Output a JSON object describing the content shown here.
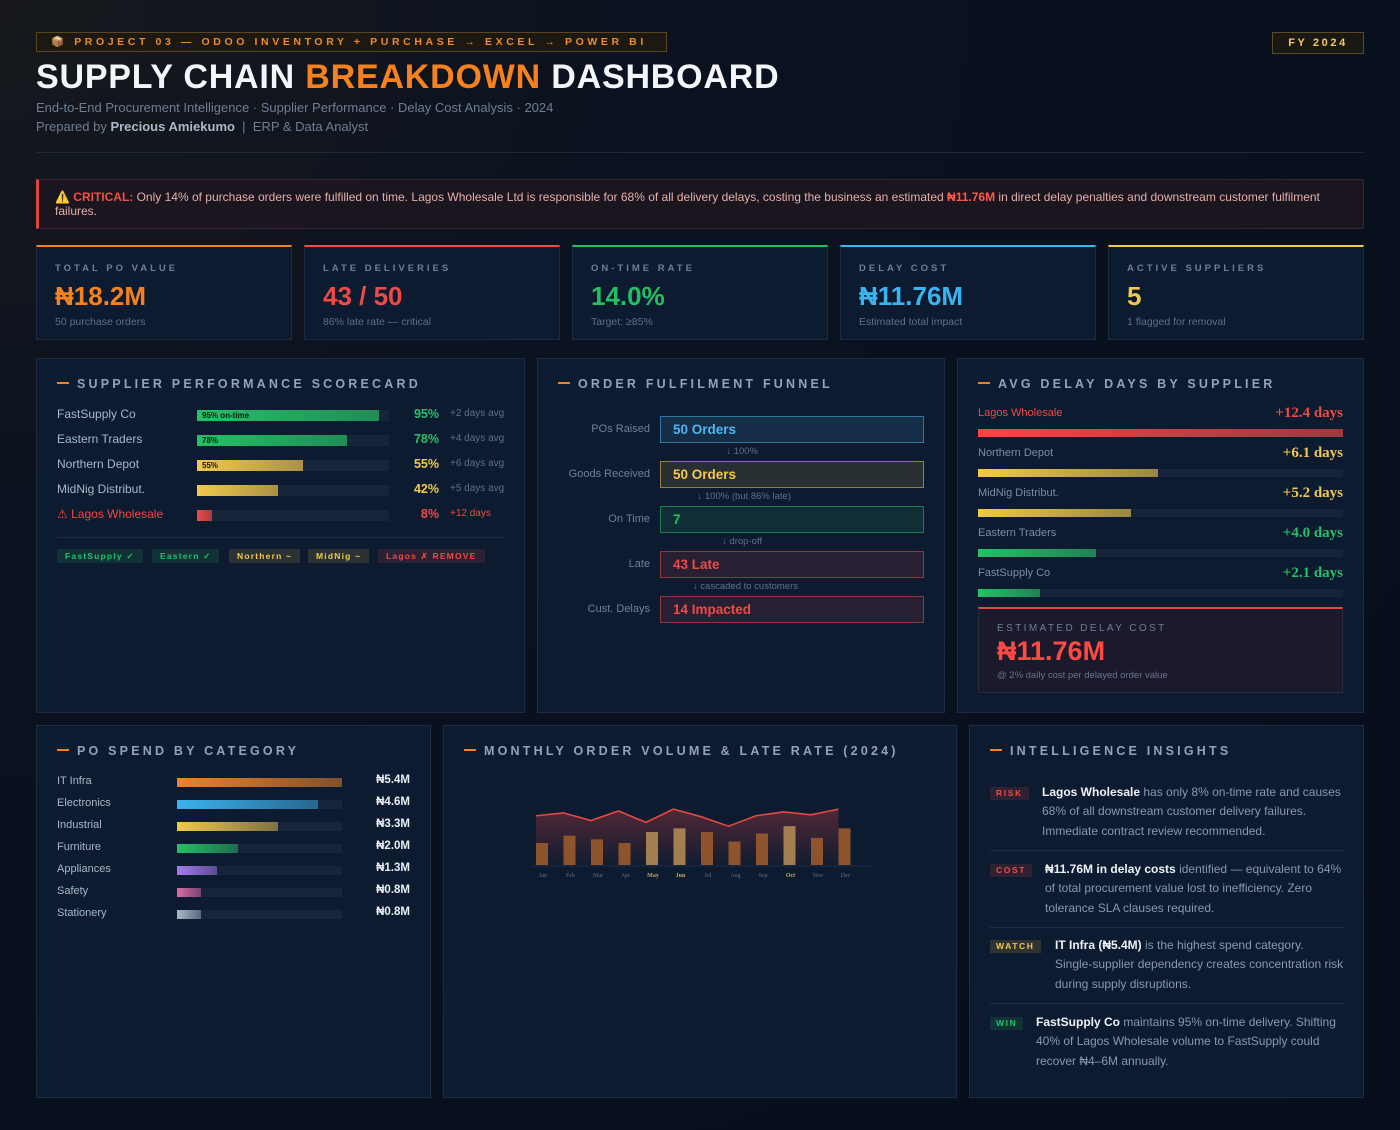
{
  "header": {
    "project_tag": "📦 PROJECT 03 — ODOO INVENTORY + PURCHASE → EXCEL → POWER BI",
    "fiscal_year": "FY 2024",
    "title_part1": "SUPPLY CHAIN ",
    "title_highlight": "BREAKDOWN",
    "title_part2": " DASHBOARD",
    "subtitle": "End-to-End Procurement Intelligence · Supplier Performance · Delay Cost Analysis · 2024",
    "prepared_prefix": "Prepared by ",
    "prepared_name": "Precious Amiekumo",
    "prepared_role": "  |  ERP & Data Analyst"
  },
  "alert": {
    "label": "⚠️ CRITICAL:",
    "text_before": " Only 14% of purchase orders were fulfilled on time. Lagos Wholesale Ltd is responsible for 68% of all delivery delays, costing the business an estimated ",
    "money": "₦11.76M",
    "text_after": " in direct delay penalties and downstream customer fulfilment failures."
  },
  "kpis": [
    {
      "label": "TOTAL PO VALUE",
      "value": "₦18.2M",
      "sub": "50 purchase orders",
      "color": "#f5821f"
    },
    {
      "label": "LATE DELIVERIES",
      "value": "43 / 50",
      "sub": "86% late rate — critical",
      "color": "#ef4a44"
    },
    {
      "label": "ON-TIME RATE",
      "value": "14.0%",
      "sub": "Target: ≥85%",
      "color": "#23c063"
    },
    {
      "label": "DELAY COST",
      "value": "₦11.76M",
      "sub": "Estimated total impact",
      "color": "#3bb3f0"
    },
    {
      "label": "ACTIVE SUPPLIERS",
      "value": "5",
      "sub": "1 flagged for removal",
      "color": "#f2c94c"
    }
  ],
  "scorecard": {
    "title": "SUPPLIER PERFORMANCE SCORECARD",
    "rows": [
      {
        "name": "FastSupply Co",
        "bar_label": "95% on-time",
        "percent": 95,
        "pct_text": "95%",
        "days": "+2 days avg",
        "color": "#25c166"
      },
      {
        "name": "Eastern Traders",
        "bar_label": "78%",
        "percent": 78,
        "pct_text": "78%",
        "days": "+4 days avg",
        "color": "#25c166"
      },
      {
        "name": "Northern Depot",
        "bar_label": "55%",
        "percent": 55,
        "pct_text": "55%",
        "days": "+6 days avg",
        "color": "#f2c94c"
      },
      {
        "name": "MidNig Distribut.",
        "bar_label": "",
        "percent": 42,
        "pct_text": "42%",
        "days": "+5 days avg",
        "color": "#f2c94c"
      },
      {
        "name": "⚠ Lagos Wholesale",
        "bar_label": "",
        "percent": 8,
        "pct_text": "8%",
        "days": "+12 days",
        "color": "#ef4a44"
      }
    ],
    "badges": [
      {
        "label": "FastSupply ✓",
        "color": "#25c166"
      },
      {
        "label": "Eastern ✓",
        "color": "#25c166"
      },
      {
        "label": "Northern ~",
        "color": "#f2c94c"
      },
      {
        "label": "MidNig ~",
        "color": "#f2c94c"
      },
      {
        "label": "Lagos ✗ REMOVE",
        "color": "#ef4a44"
      }
    ]
  },
  "funnel": {
    "title": "ORDER FULFILMENT FUNNEL",
    "stages": [
      {
        "label": "POs Raised",
        "value": "50 Orders",
        "note": "↓ 100%",
        "color": "#4fb4f0"
      },
      {
        "label": "Goods Received",
        "value": "50 Orders",
        "note": "↓ 100% (but 86% late)",
        "color": "#f2c94c"
      },
      {
        "label": "On Time",
        "value": "7",
        "note": "↓ drop-off",
        "color": "#25c166"
      },
      {
        "label": "Late",
        "value": "43 Late",
        "note": "↓ cascaded to customers",
        "color": "#ef4a44"
      },
      {
        "label": "Cust. Delays",
        "value": "14 Impacted",
        "note": "",
        "color": "#ef4a44"
      }
    ]
  },
  "delay": {
    "title": "AVG DELAY DAYS BY SUPPLIER",
    "rows": [
      {
        "name": "Lagos Wholesale",
        "value": "+12.4 days",
        "days": 12.4,
        "color": "#ef4a44"
      },
      {
        "name": "Northern Depot",
        "value": "+6.1 days",
        "days": 6.1,
        "color": "#f2c94c"
      },
      {
        "name": "MidNig Distribut.",
        "value": "+5.2 days",
        "days": 5.2,
        "color": "#f2c94c"
      },
      {
        "name": "Eastern Traders",
        "value": "+4.0 days",
        "days": 4.0,
        "color": "#25c166"
      },
      {
        "name": "FastSupply Co",
        "value": "+2.1 days",
        "days": 2.1,
        "color": "#25c166"
      }
    ],
    "estimate_label": "ESTIMATED DELAY COST",
    "estimate_value": "₦11.76M",
    "estimate_sub": "@ 2% daily cost per delayed order value"
  },
  "spend": {
    "title": "PO SPEND BY CATEGORY",
    "rows": [
      {
        "name": "IT Infra",
        "value": "₦5.4M",
        "amount": 5.4,
        "color": "#f5821f"
      },
      {
        "name": "Electronics",
        "value": "₦4.6M",
        "amount": 4.6,
        "color": "#3bb3f0"
      },
      {
        "name": "Industrial",
        "value": "₦3.3M",
        "amount": 3.3,
        "color": "#f2c94c"
      },
      {
        "name": "Furniture",
        "value": "₦2.0M",
        "amount": 2.0,
        "color": "#25c166"
      },
      {
        "name": "Appliances",
        "value": "₦1.3M",
        "amount": 1.3,
        "color": "#a67cf0"
      },
      {
        "name": "Safety",
        "value": "₦0.8M",
        "amount": 0.8,
        "color": "#e06aa8"
      },
      {
        "name": "Stationery",
        "value": "₦0.8M",
        "amount": 0.8,
        "color": "#aab7c8"
      }
    ]
  },
  "monthly": {
    "title": "MONTHLY ORDER VOLUME & LATE RATE (2024)"
  },
  "chart_data": {
    "type": "bar",
    "categories": [
      "Jan",
      "Feb",
      "Mar",
      "Apr",
      "May",
      "Jun",
      "Jul",
      "Aug",
      "Sep",
      "Oct",
      "Nov",
      "Dec"
    ],
    "highlight_categories": [
      "May",
      "Jun",
      "Oct"
    ],
    "series": [
      {
        "type": "bar",
        "values": [
          3,
          4,
          3.5,
          3,
          4.5,
          5,
          4.5,
          3.2,
          4.3,
          5.3,
          3.7,
          5
        ]
      },
      {
        "type": "area",
        "values": [
          75,
          78,
          70,
          80,
          68,
          82,
          74,
          64,
          75,
          79,
          76,
          82
        ]
      }
    ],
    "bar_ylim": [
      0,
      6
    ],
    "line_ylim": [
      0,
      100
    ]
  },
  "insights": {
    "title": "INTELLIGENCE INSIGHTS",
    "items": [
      {
        "tag": "RISK",
        "tag_color": "#ef4a44",
        "lead": "Lagos Wholesale",
        "text": " has only 8% on-time rate and causes 68% of all downstream customer delivery failures. Immediate contract review recommended."
      },
      {
        "tag": "COST",
        "tag_color": "#ef4a44",
        "lead": "₦11.76M in delay costs",
        "text": " identified — equivalent to 64% of total procurement value lost to inefficiency. Zero tolerance SLA clauses required."
      },
      {
        "tag": "WATCH",
        "tag_color": "#f2c94c",
        "lead": "IT Infra (₦5.4M)",
        "text": " is the highest spend category. Single-supplier dependency creates concentration risk during supply disruptions."
      },
      {
        "tag": "WIN",
        "tag_color": "#25c166",
        "lead": "FastSupply Co",
        "text": " maintains 95% on-time delivery. Shifting 40% of Lagos Wholesale volume to FastSupply could recover ₦4–6M annually."
      }
    ]
  }
}
